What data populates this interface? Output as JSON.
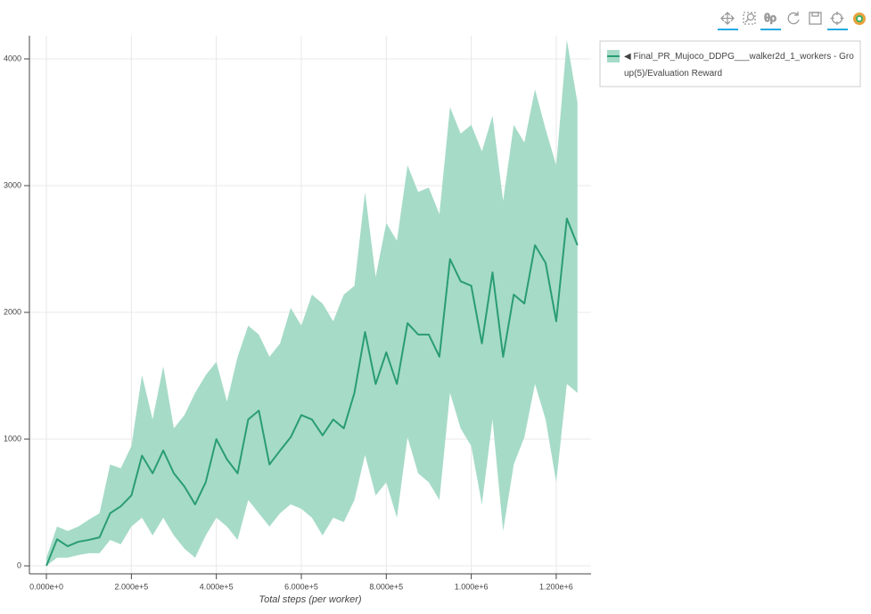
{
  "chart_data": {
    "type": "line",
    "x_label": "Total steps (per worker)",
    "x": [
      0,
      25000,
      50000,
      75000,
      100000,
      125000,
      150000,
      175000,
      200000,
      225000,
      250000,
      275000,
      300000,
      325000,
      350000,
      375000,
      400000,
      425000,
      450000,
      475000,
      500000,
      525000,
      550000,
      575000,
      600000,
      625000,
      650000,
      675000,
      700000,
      725000,
      750000,
      775000,
      800000,
      825000,
      850000,
      875000,
      900000,
      925000,
      950000,
      975000,
      1000000,
      1025000,
      1050000,
      1075000,
      1100000,
      1125000,
      1150000,
      1175000,
      1200000,
      1225000,
      1250000
    ],
    "series": [
      {
        "name": "◀ Final_PR_Mujoco_DDPG___walker2d_1_workers - Group(5)/Evaluation Reward",
        "color": "#2a9d72",
        "values": [
          0,
          210,
          155,
          190,
          205,
          225,
          415,
          470,
          555,
          870,
          730,
          910,
          730,
          625,
          485,
          660,
          1000,
          840,
          730,
          1155,
          1225,
          800,
          910,
          1015,
          1190,
          1155,
          1030,
          1155,
          1085,
          1365,
          1845,
          1435,
          1685,
          1435,
          1915,
          1825,
          1825,
          1650,
          2420,
          2245,
          2210,
          1755,
          2315,
          1650,
          2140,
          2070,
          2530,
          2390,
          1930,
          2740,
          2530
        ],
        "band": {
          "color": "#a6dbc8",
          "upper": [
            65,
            310,
            275,
            310,
            365,
            415,
            800,
            770,
            945,
            1505,
            1155,
            1575,
            1085,
            1190,
            1365,
            1505,
            1610,
            1295,
            1650,
            1895,
            1825,
            1650,
            1755,
            2035,
            1895,
            2140,
            2070,
            1930,
            2140,
            2210,
            2950,
            2280,
            2705,
            2565,
            3160,
            2950,
            2985,
            2775,
            3620,
            3410,
            3480,
            3270,
            3550,
            2880,
            3480,
            3340,
            3760,
            3445,
            3160,
            4150,
            3655
          ],
          "lower": [
            0,
            65,
            65,
            85,
            100,
            100,
            205,
            170,
            310,
            380,
            240,
            380,
            240,
            135,
            65,
            240,
            380,
            310,
            205,
            520,
            415,
            310,
            415,
            485,
            450,
            380,
            240,
            380,
            345,
            520,
            875,
            555,
            660,
            380,
            1015,
            730,
            660,
            520,
            1365,
            1085,
            945,
            485,
            1155,
            275,
            800,
            1015,
            1435,
            1155,
            660,
            1435,
            1365
          ]
        }
      }
    ],
    "xlim": [
      -40000,
      1282000
    ],
    "ylim": [
      -63,
      4183
    ],
    "xticks": [
      {
        "value": 0,
        "label": "0.000e+0"
      },
      {
        "value": 200000,
        "label": "2.000e+5"
      },
      {
        "value": 400000,
        "label": "4.000e+5"
      },
      {
        "value": 600000,
        "label": "6.000e+5"
      },
      {
        "value": 800000,
        "label": "8.000e+5"
      },
      {
        "value": 1000000,
        "label": "1.000e+6"
      },
      {
        "value": 1200000,
        "label": "1.200e+6"
      }
    ],
    "yticks": [
      0,
      1000,
      2000,
      3000,
      4000
    ],
    "grid": true,
    "legend": "right"
  }
}
